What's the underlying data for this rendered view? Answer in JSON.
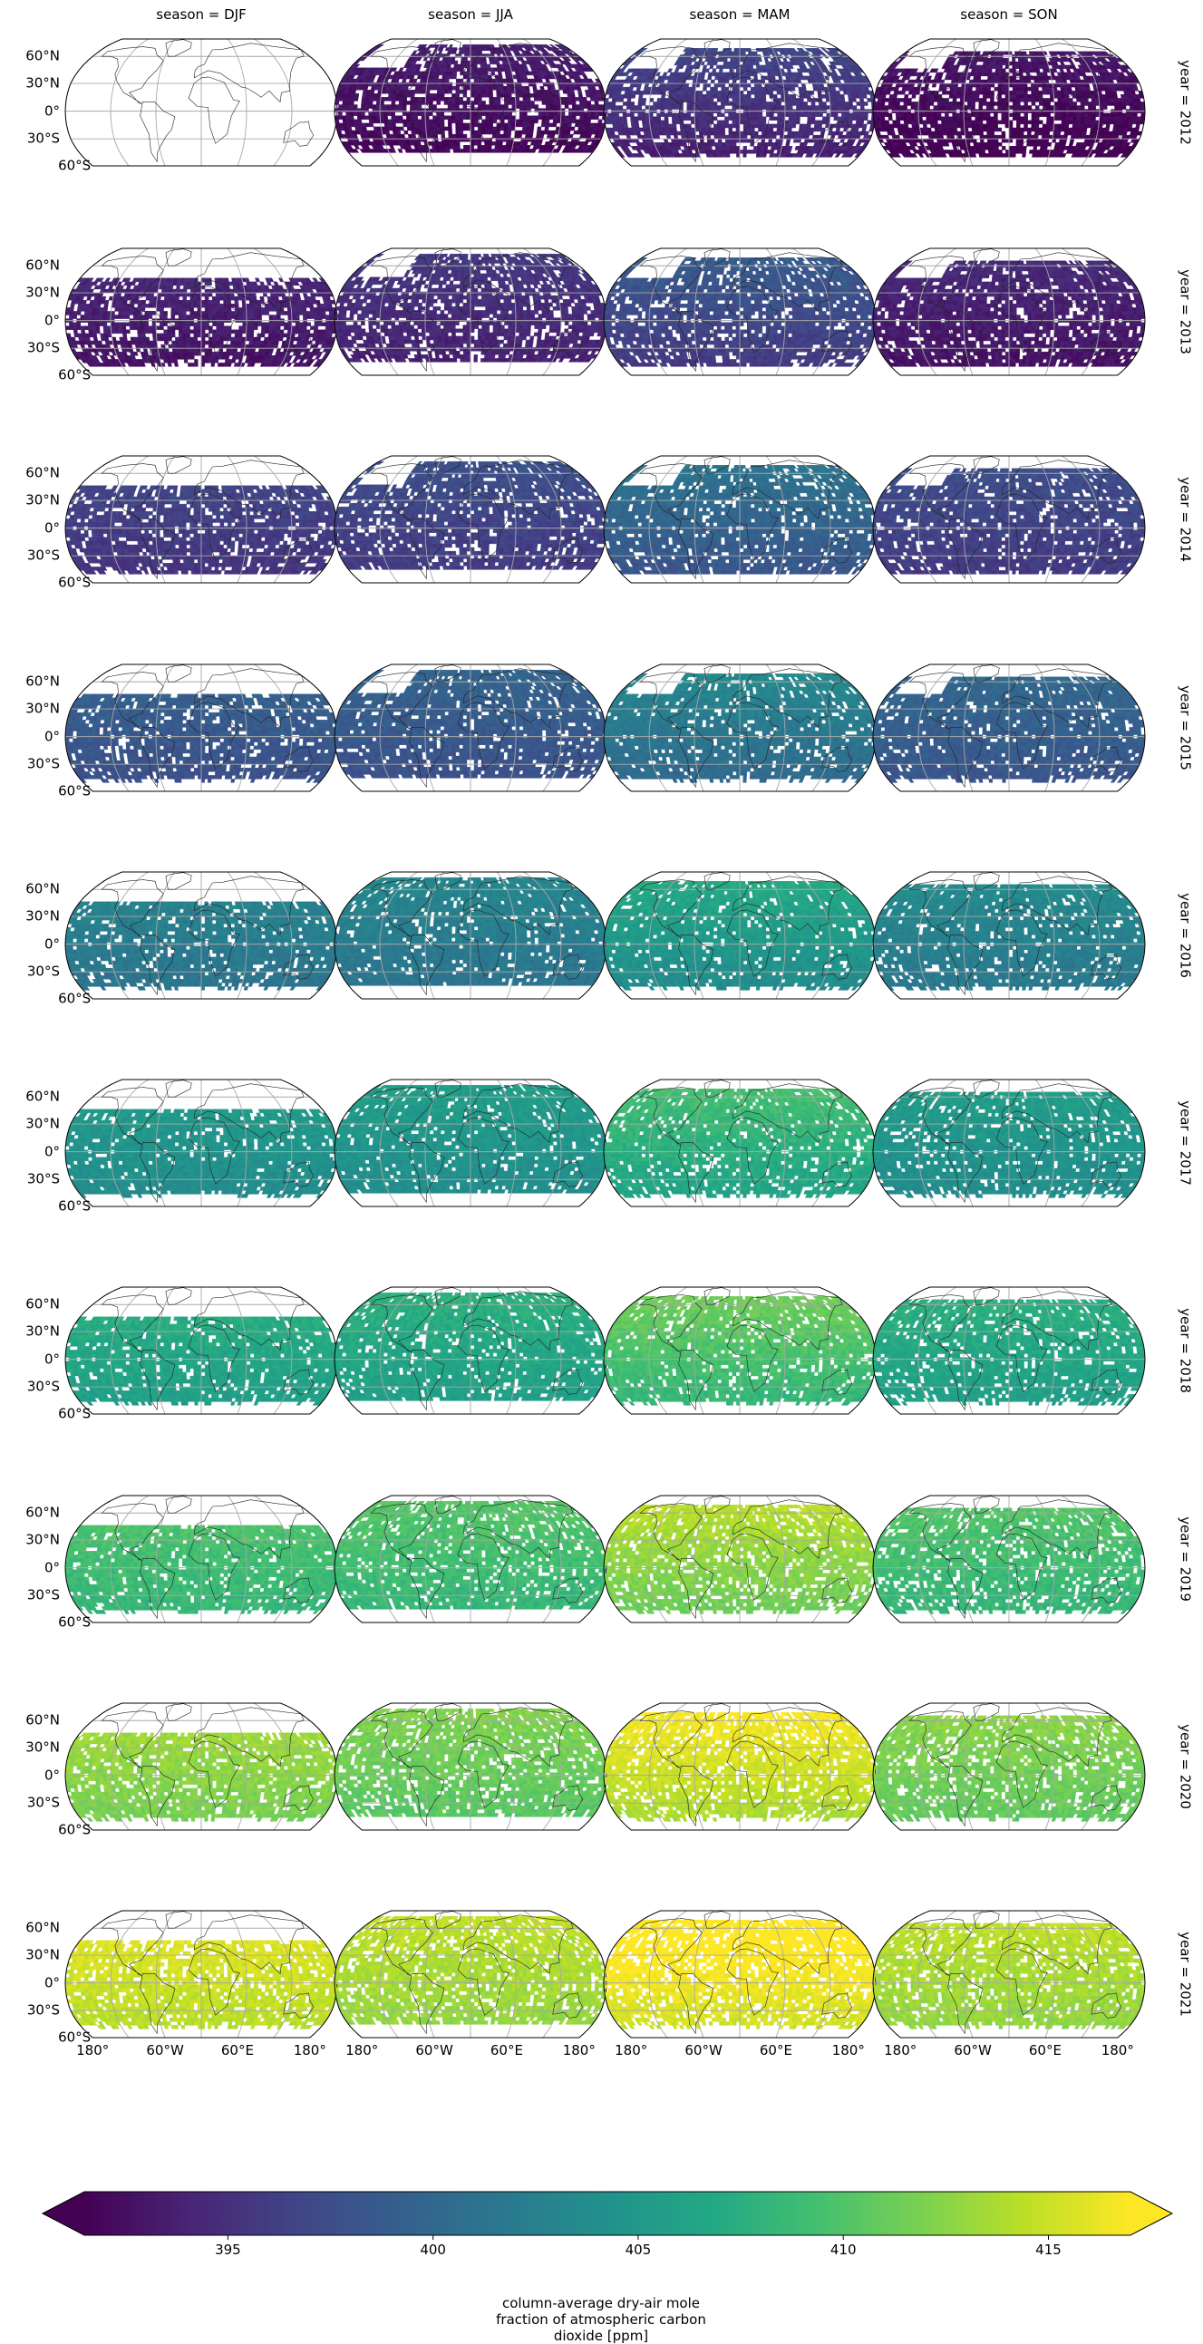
{
  "figure": {
    "columns": [
      {
        "label": "season = DJF",
        "season": "DJF"
      },
      {
        "label": "season = JJA",
        "season": "JJA"
      },
      {
        "label": "season = MAM",
        "season": "MAM"
      },
      {
        "label": "season = SON",
        "season": "SON"
      }
    ],
    "rows": [
      {
        "label": "year = 2012",
        "year": 2012
      },
      {
        "label": "year = 2013",
        "year": 2013
      },
      {
        "label": "year = 2014",
        "year": 2014
      },
      {
        "label": "year = 2015",
        "year": 2015
      },
      {
        "label": "year = 2016",
        "year": 2016
      },
      {
        "label": "year = 2017",
        "year": 2017
      },
      {
        "label": "year = 2018",
        "year": 2018
      },
      {
        "label": "year = 2019",
        "year": 2019
      },
      {
        "label": "year = 2020",
        "year": 2020
      },
      {
        "label": "year = 2021",
        "year": 2021
      }
    ],
    "lat_tick_labels": [
      "60°N",
      "30°N",
      "0°",
      "30°S",
      "60°S"
    ],
    "lon_tick_labels": [
      "180°",
      "60°W",
      "60°E",
      "180°"
    ],
    "colorbar": {
      "ticks": [
        395,
        400,
        405,
        410,
        415
      ],
      "tick_labels": [
        "395",
        "400",
        "405",
        "410",
        "415"
      ],
      "range": [
        391.5,
        417
      ],
      "extend": "both",
      "colormap": "viridis",
      "label_lines": [
        "column-average dry-air mole",
        "fraction of atmospheric carbon",
        "dioxide [ppm]"
      ]
    }
  },
  "chart_data": {
    "type": "heatmap",
    "projection": "Robinson",
    "facet_col": "season",
    "facet_row": "year",
    "variable_label": "column-average dry-air mole fraction of atmospheric carbon dioxide [ppm]",
    "approx_panel_mean_ppm": {
      "2012": {
        "DJF": null,
        "JJA": 392.5,
        "MAM": 395.0,
        "SON": 392.0
      },
      "2013": {
        "DJF": 393.5,
        "JJA": 394.5,
        "MAM": 397.0,
        "SON": 393.5
      },
      "2014": {
        "DJF": 396.0,
        "JJA": 396.5,
        "MAM": 399.5,
        "SON": 396.5
      },
      "2015": {
        "DJF": 398.5,
        "JJA": 398.5,
        "MAM": 401.5,
        "SON": 399.0
      },
      "2016": {
        "DJF": 402.0,
        "JJA": 402.0,
        "MAM": 405.0,
        "SON": 402.5
      },
      "2017": {
        "DJF": 404.5,
        "JJA": 404.5,
        "MAM": 407.5,
        "SON": 404.5
      },
      "2018": {
        "DJF": 406.5,
        "JJA": 406.5,
        "MAM": 409.5,
        "SON": 406.5
      },
      "2019": {
        "DJF": 409.0,
        "JJA": 409.0,
        "MAM": 412.5,
        "SON": 409.0
      },
      "2020": {
        "DJF": 412.5,
        "JJA": 411.0,
        "MAM": 415.0,
        "SON": 411.5
      },
      "2021": {
        "DJF": 415.0,
        "JJA": 413.5,
        "MAM": 416.5,
        "SON": 413.5
      }
    },
    "colorbar_range": [
      391.5,
      417
    ],
    "colorbar_ticks": [
      395,
      400,
      405,
      410,
      415
    ],
    "graticule": {
      "lat_step_deg": 30,
      "lon_step_deg": 60
    },
    "grid": true
  }
}
